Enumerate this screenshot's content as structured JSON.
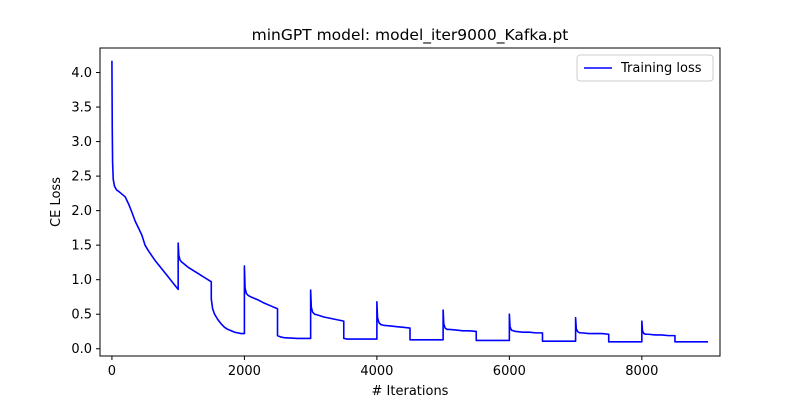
{
  "chart_data": {
    "type": "line",
    "title": "minGPT model: model_iter9000_Kafka.pt",
    "xlabel": "# Iterations",
    "ylabel": "CE Loss",
    "xlim": [
      -180,
      9180
    ],
    "ylim": [
      -0.105,
      4.355
    ],
    "xticks": [
      0,
      2000,
      4000,
      6000,
      8000
    ],
    "xtick_labels": [
      "0",
      "2000",
      "4000",
      "6000",
      "8000"
    ],
    "yticks": [
      0.0,
      0.5,
      1.0,
      1.5,
      2.0,
      2.5,
      3.0,
      3.5,
      4.0
    ],
    "ytick_labels": [
      "0.0",
      "0.5",
      "1.0",
      "1.5",
      "2.0",
      "2.5",
      "3.0",
      "3.5",
      "4.0"
    ],
    "grid": false,
    "legend_position": "top-right",
    "series": [
      {
        "name": "Training loss",
        "color": "#0000ff",
        "x": [
          0,
          5,
          10,
          20,
          40,
          70,
          100,
          150,
          200,
          250,
          300,
          350,
          400,
          450,
          500,
          550,
          600,
          650,
          700,
          750,
          800,
          850,
          900,
          950,
          1000,
          1000,
          1010,
          1030,
          1060,
          1100,
          1150,
          1200,
          1250,
          1300,
          1350,
          1400,
          1450,
          1500,
          1500,
          1520,
          1550,
          1600,
          1650,
          1700,
          1750,
          1800,
          1850,
          1900,
          1950,
          2000,
          2000,
          2010,
          2030,
          2060,
          2100,
          2200,
          2300,
          2400,
          2500,
          2500,
          2550,
          2600,
          2700,
          2800,
          2900,
          3000,
          3000,
          3010,
          3030,
          3060,
          3100,
          3200,
          3300,
          3400,
          3500,
          3500,
          3550,
          3600,
          3700,
          3800,
          3900,
          4000,
          4000,
          4010,
          4030,
          4060,
          4100,
          4200,
          4300,
          4400,
          4500,
          4500,
          4550,
          4600,
          4700,
          4800,
          4900,
          5000,
          5000,
          5010,
          5030,
          5060,
          5100,
          5200,
          5300,
          5400,
          5500,
          5500,
          5550,
          5600,
          5700,
          5800,
          5900,
          6000,
          6000,
          6010,
          6030,
          6060,
          6100,
          6200,
          6300,
          6400,
          6500,
          6500,
          6550,
          6600,
          6700,
          6800,
          6900,
          7000,
          7000,
          7010,
          7030,
          7060,
          7100,
          7200,
          7300,
          7400,
          7500,
          7500,
          7550,
          7600,
          7700,
          7800,
          7900,
          8000,
          8000,
          8010,
          8030,
          8060,
          8100,
          8200,
          8300,
          8400,
          8500,
          8500,
          8550,
          8600,
          8700,
          8800,
          8900,
          9000
        ],
        "y": [
          4.17,
          3.2,
          2.7,
          2.45,
          2.35,
          2.3,
          2.28,
          2.24,
          2.2,
          2.1,
          1.98,
          1.85,
          1.75,
          1.65,
          1.5,
          1.42,
          1.35,
          1.28,
          1.22,
          1.16,
          1.1,
          1.04,
          0.98,
          0.92,
          0.86,
          1.53,
          1.35,
          1.28,
          1.25,
          1.22,
          1.18,
          1.15,
          1.12,
          1.09,
          1.06,
          1.03,
          1.0,
          0.97,
          0.72,
          0.58,
          0.5,
          0.42,
          0.36,
          0.31,
          0.28,
          0.26,
          0.24,
          0.23,
          0.22,
          0.22,
          1.2,
          0.88,
          0.8,
          0.77,
          0.75,
          0.71,
          0.66,
          0.62,
          0.58,
          0.19,
          0.17,
          0.16,
          0.155,
          0.15,
          0.15,
          0.15,
          0.85,
          0.6,
          0.53,
          0.5,
          0.49,
          0.46,
          0.44,
          0.42,
          0.4,
          0.15,
          0.14,
          0.14,
          0.14,
          0.14,
          0.14,
          0.14,
          0.68,
          0.45,
          0.38,
          0.35,
          0.34,
          0.33,
          0.32,
          0.31,
          0.3,
          0.13,
          0.13,
          0.13,
          0.13,
          0.13,
          0.13,
          0.13,
          0.56,
          0.36,
          0.3,
          0.28,
          0.28,
          0.27,
          0.26,
          0.26,
          0.25,
          0.12,
          0.12,
          0.12,
          0.12,
          0.12,
          0.12,
          0.12,
          0.5,
          0.32,
          0.27,
          0.26,
          0.25,
          0.24,
          0.24,
          0.23,
          0.23,
          0.11,
          0.11,
          0.11,
          0.11,
          0.11,
          0.11,
          0.11,
          0.45,
          0.29,
          0.25,
          0.23,
          0.23,
          0.22,
          0.22,
          0.22,
          0.21,
          0.1,
          0.1,
          0.1,
          0.1,
          0.1,
          0.1,
          0.1,
          0.4,
          0.26,
          0.22,
          0.21,
          0.21,
          0.2,
          0.2,
          0.19,
          0.19,
          0.1,
          0.1,
          0.1,
          0.1,
          0.1,
          0.1,
          0.1
        ]
      }
    ]
  }
}
